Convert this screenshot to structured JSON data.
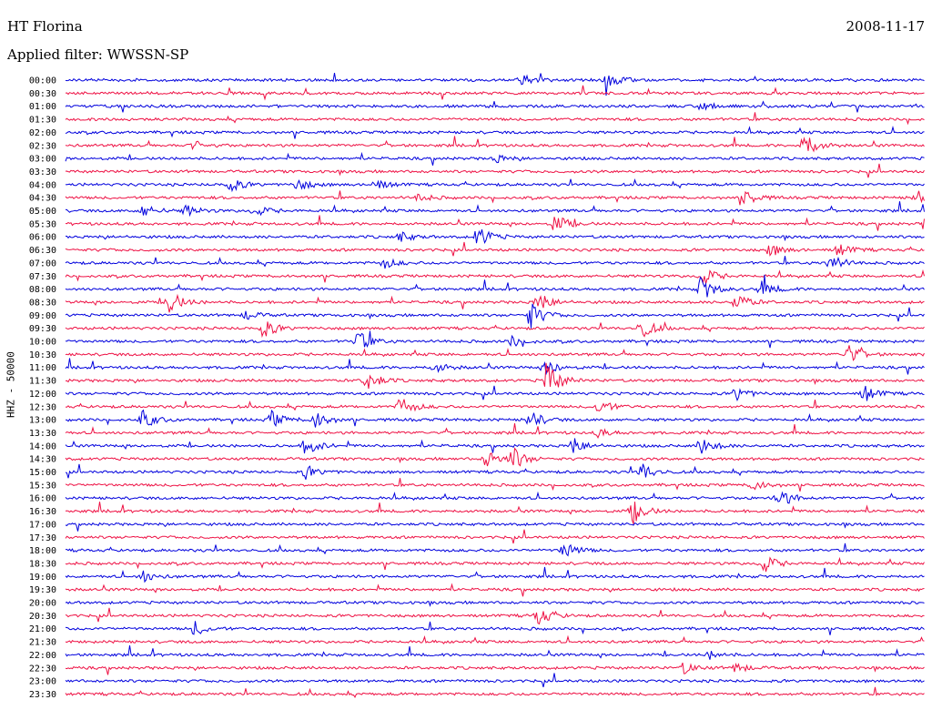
{
  "header": {
    "station": "HT Florina",
    "date": "2008-11-17",
    "filter": "Applied filter: WWSSN-SP"
  },
  "chart_data": {
    "type": "line",
    "ylabel": "HHZ - 50000",
    "colors": [
      "#0000dd",
      "#ee1144"
    ],
    "rows": [
      {
        "time": "00:00",
        "events": [
          [
            0.53,
            0.8
          ],
          [
            0.63,
            1.2
          ]
        ]
      },
      {
        "time": "00:30",
        "events": []
      },
      {
        "time": "01:00",
        "events": [
          [
            0.74,
            0.5
          ]
        ]
      },
      {
        "time": "01:30",
        "events": []
      },
      {
        "time": "02:00",
        "events": []
      },
      {
        "time": "02:30",
        "events": [
          [
            0.15,
            0.5
          ],
          [
            0.86,
            1.8
          ]
        ]
      },
      {
        "time": "03:00",
        "events": [
          [
            0.5,
            0.5
          ]
        ]
      },
      {
        "time": "03:30",
        "events": []
      },
      {
        "time": "04:00",
        "events": [
          [
            0.19,
            1.0
          ],
          [
            0.27,
            0.8
          ],
          [
            0.36,
            0.7
          ]
        ]
      },
      {
        "time": "04:30",
        "events": [
          [
            0.41,
            0.5
          ],
          [
            0.79,
            1.0
          ],
          [
            0.99,
            1.0
          ]
        ]
      },
      {
        "time": "05:00",
        "events": [
          [
            0.09,
            0.8
          ],
          [
            0.14,
            0.7
          ],
          [
            0.22,
            0.7
          ]
        ]
      },
      {
        "time": "05:30",
        "events": [
          [
            0.57,
            1.2
          ],
          [
            1.0,
            0.8
          ]
        ]
      },
      {
        "time": "06:00",
        "events": [
          [
            0.48,
            1.3
          ],
          [
            0.39,
            0.6
          ]
        ]
      },
      {
        "time": "06:30",
        "events": [
          [
            0.82,
            0.8
          ],
          [
            0.9,
            0.8
          ]
        ]
      },
      {
        "time": "07:00",
        "events": [
          [
            0.37,
            0.7
          ],
          [
            0.89,
            1.2
          ]
        ]
      },
      {
        "time": "07:30",
        "events": [
          [
            0.74,
            1.3
          ]
        ]
      },
      {
        "time": "08:00",
        "events": [
          [
            0.74,
            1.6
          ],
          [
            0.81,
            1.0
          ]
        ]
      },
      {
        "time": "08:30",
        "events": [
          [
            0.12,
            1.6
          ],
          [
            0.55,
            1.3
          ],
          [
            0.78,
            1.2
          ]
        ]
      },
      {
        "time": "09:00",
        "events": [
          [
            0.54,
            1.8
          ],
          [
            0.21,
            0.6
          ]
        ]
      },
      {
        "time": "09:30",
        "events": [
          [
            0.23,
            1.2
          ],
          [
            0.67,
            1.3
          ]
        ]
      },
      {
        "time": "10:00",
        "events": [
          [
            0.34,
            1.4
          ],
          [
            0.52,
            0.7
          ]
        ]
      },
      {
        "time": "10:30",
        "events": [
          [
            0.91,
            1.3
          ]
        ]
      },
      {
        "time": "11:00",
        "events": [
          [
            0.43,
            0.7
          ],
          [
            0.56,
            1.0
          ]
        ]
      },
      {
        "time": "11:30",
        "events": [
          [
            0.35,
            1.4
          ],
          [
            0.56,
            2.5
          ]
        ]
      },
      {
        "time": "12:00",
        "events": [
          [
            0.78,
            0.9
          ],
          [
            0.93,
            1.0
          ],
          [
            1.03,
            1.6
          ]
        ]
      },
      {
        "time": "12:30",
        "events": [
          [
            0.39,
            1.3
          ],
          [
            0.62,
            1.0
          ],
          [
            1.03,
            1.0
          ]
        ]
      },
      {
        "time": "13:00",
        "events": [
          [
            0.09,
            1.2
          ],
          [
            0.24,
            1.0
          ],
          [
            0.29,
            1.2
          ],
          [
            0.54,
            1.2
          ]
        ]
      },
      {
        "time": "13:30",
        "events": [
          [
            0.62,
            0.5
          ]
        ]
      },
      {
        "time": "14:00",
        "events": [
          [
            0.28,
            1.2
          ],
          [
            0.59,
            1.1
          ],
          [
            0.74,
            1.2
          ],
          [
            1.04,
            1.0
          ]
        ]
      },
      {
        "time": "14:30",
        "events": [
          [
            0.49,
            1.2
          ],
          [
            0.52,
            1.4
          ]
        ]
      },
      {
        "time": "15:00",
        "events": [
          [
            0.28,
            0.8
          ],
          [
            0.67,
            1.2
          ]
        ]
      },
      {
        "time": "15:30",
        "events": [
          [
            0.8,
            0.7
          ]
        ]
      },
      {
        "time": "16:00",
        "events": [
          [
            0.83,
            1.3
          ]
        ]
      },
      {
        "time": "16:30",
        "events": [
          [
            0.66,
            1.6
          ]
        ]
      },
      {
        "time": "17:00",
        "events": []
      },
      {
        "time": "17:30",
        "events": []
      },
      {
        "time": "18:00",
        "events": [
          [
            0.58,
            1.2
          ]
        ]
      },
      {
        "time": "18:30",
        "events": [
          [
            0.81,
            1.4
          ]
        ]
      },
      {
        "time": "19:00",
        "events": [
          [
            0.09,
            0.7
          ]
        ]
      },
      {
        "time": "19:30",
        "events": []
      },
      {
        "time": "20:00",
        "events": []
      },
      {
        "time": "20:30",
        "events": [
          [
            0.55,
            1.2
          ],
          [
            1.03,
            0.8
          ]
        ]
      },
      {
        "time": "21:00",
        "events": [
          [
            0.15,
            0.9
          ]
        ]
      },
      {
        "time": "21:30",
        "events": []
      },
      {
        "time": "22:00",
        "events": [
          [
            0.75,
            0.5
          ]
        ]
      },
      {
        "time": "22:30",
        "events": [
          [
            0.72,
            0.7
          ],
          [
            0.78,
            0.6
          ]
        ]
      },
      {
        "time": "23:00",
        "events": []
      },
      {
        "time": "23:30",
        "events": []
      }
    ]
  }
}
